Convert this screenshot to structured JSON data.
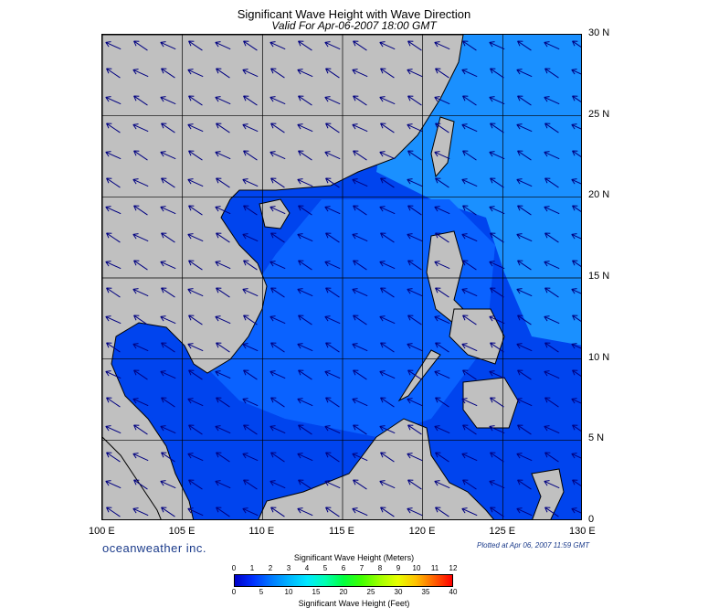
{
  "title": "Significant Wave Height with Wave Direction",
  "subtitle": "Valid For Apr-06-2007 18:00 GMT",
  "longitude_labels": [
    "100 E",
    "105 E",
    "110 E",
    "115 E",
    "120 E",
    "125 E",
    "130 E"
  ],
  "latitude_labels": [
    "30 N",
    "25 N",
    "20 N",
    "15 N",
    "10 N",
    "5 N",
    "0"
  ],
  "brand": "oceanweather inc.",
  "plotted": "Plotted at Apr 06, 2007 11:59 GMT",
  "colorbar": {
    "title_top": "Significant Wave Height (Meters)",
    "title_bottom": "Significant Wave Height (Feet)",
    "meters_ticks": [
      "0",
      "1",
      "2",
      "3",
      "4",
      "5",
      "6",
      "7",
      "8",
      "9",
      "10",
      "11",
      "12"
    ],
    "feet_ticks": [
      "0",
      "5",
      "10",
      "15",
      "20",
      "25",
      "30",
      "35",
      "40"
    ],
    "colors": [
      "#0000c8",
      "#0030ff",
      "#0078ff",
      "#00b4ff",
      "#00e8ff",
      "#00ffb0",
      "#00ff40",
      "#40ff00",
      "#a0ff00",
      "#e8ff00",
      "#ffc000",
      "#ff6000",
      "#ff0000"
    ]
  },
  "colors": {
    "land": "#c0c0c0",
    "sea_dark": "#0044ee",
    "sea_mid": "#0a62ff",
    "sea_light": "#1a90ff",
    "arrow": "#000080"
  }
}
